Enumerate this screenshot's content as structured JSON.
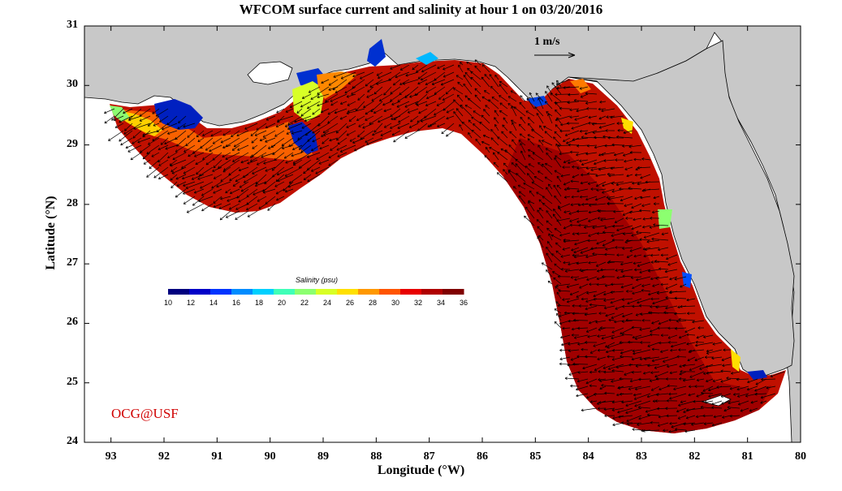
{
  "title": "WFCOM surface current and salinity at hour 1 on 03/20/2016",
  "xlabel": "Longitude (°W)",
  "ylabel": "Latitude (°N)",
  "credit": "OCG@USF",
  "scale_vector_label": "1 m/s",
  "colorbar": {
    "title": "Salinity (psu)",
    "min": 10,
    "max": 36,
    "tick_labels": [
      "10",
      "12",
      "14",
      "16",
      "18",
      "20",
      "22",
      "24",
      "26",
      "28",
      "30",
      "32",
      "34",
      "36"
    ],
    "colors": [
      "#00007f",
      "#0000c8",
      "#0034ff",
      "#008cff",
      "#00d0ff",
      "#3fffb8",
      "#8cff70",
      "#d8ff26",
      "#ffe000",
      "#ff9800",
      "#ff5400",
      "#e80000",
      "#b00000",
      "#800000"
    ]
  },
  "x_ticks": [
    "93",
    "92",
    "91",
    "90",
    "89",
    "88",
    "87",
    "86",
    "85",
    "84",
    "83",
    "82",
    "81",
    "80"
  ],
  "y_ticks": [
    "31",
    "30",
    "29",
    "28",
    "27",
    "26",
    "25",
    "24"
  ],
  "extent": {
    "lon_west": 93.5,
    "lon_east": 80,
    "lat_south": 24,
    "lat_north": 31
  },
  "colors": {
    "land": "#c8c8c8",
    "water_dominant": "#c01000",
    "offshore": "#a00000",
    "low_salinity": "#0020c0",
    "vectors": "#000000",
    "credit": "#d00000"
  }
}
